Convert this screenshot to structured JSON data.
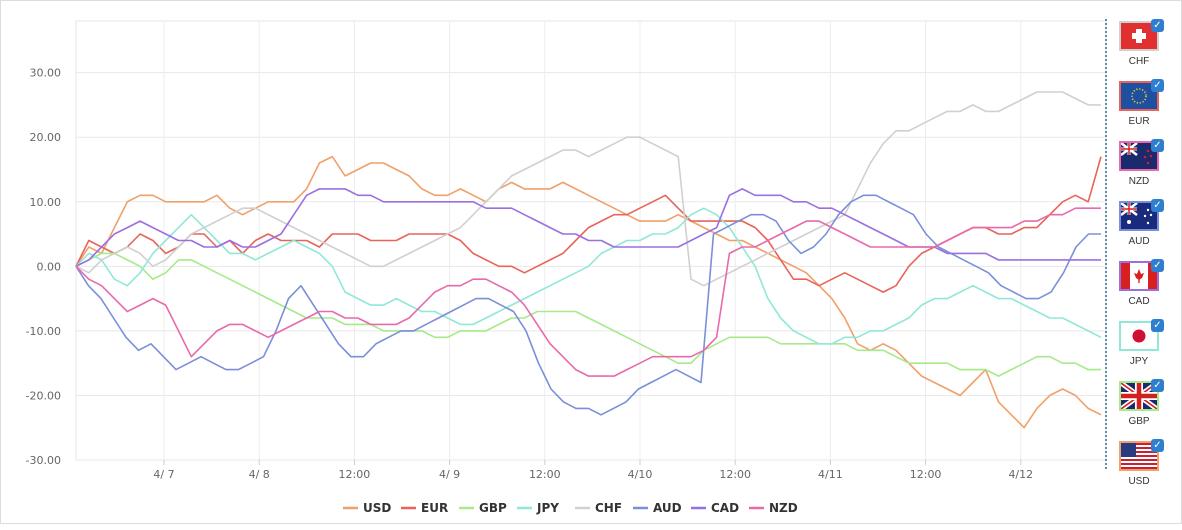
{
  "chart_data": {
    "type": "line",
    "y_ticks": [
      "30.00",
      "20.00",
      "10.00",
      "0.00",
      "-10.00",
      "-20.00",
      "-30.00"
    ],
    "x_ticks": [
      "4/ 7",
      "4/ 8",
      "12:00",
      "4/ 9",
      "12:00",
      "4/10",
      "12:00",
      "4/11",
      "12:00",
      "4/12"
    ],
    "ylim": [
      -30,
      38
    ],
    "grid": true,
    "legend_position": "bottom",
    "series": [
      {
        "name": "USD",
        "color": "#f0a06a",
        "values": [
          0,
          3,
          2,
          6,
          10,
          11,
          11,
          10,
          10,
          10,
          10,
          11,
          9,
          8,
          9,
          10,
          10,
          10,
          12,
          16,
          17,
          14,
          15,
          16,
          16,
          15,
          14,
          12,
          11,
          11,
          12,
          11,
          10,
          12,
          13,
          12,
          12,
          12,
          13,
          12,
          11,
          10,
          9,
          8,
          7,
          7,
          7,
          8,
          7,
          6,
          5,
          4,
          4,
          3,
          2,
          1,
          0,
          -1,
          -3,
          -5,
          -8,
          -12,
          -13,
          -12,
          -13,
          -15,
          -17,
          -18,
          -19,
          -20,
          -18,
          -16,
          -21,
          -23,
          -25,
          -22,
          -20,
          -19,
          -20,
          -22,
          -23
        ]
      },
      {
        "name": "EUR",
        "color": "#e8645a",
        "values": [
          0,
          4,
          3,
          2,
          3,
          5,
          4,
          2,
          3,
          5,
          5,
          3,
          4,
          2,
          4,
          5,
          4,
          4,
          4,
          3,
          5,
          5,
          5,
          4,
          4,
          4,
          5,
          5,
          5,
          5,
          4,
          2,
          1,
          0,
          0,
          -1,
          0,
          1,
          2,
          4,
          6,
          7,
          8,
          8,
          9,
          10,
          11,
          9,
          7,
          7,
          7,
          7,
          7,
          6,
          4,
          1,
          -2,
          -2,
          -3,
          -2,
          -1,
          -2,
          -3,
          -4,
          -3,
          0,
          2,
          3,
          4,
          5,
          6,
          6,
          5,
          5,
          6,
          6,
          8,
          10,
          11,
          10,
          17
        ]
      },
      {
        "name": "GBP",
        "color": "#a6ea8a",
        "values": [
          0,
          1,
          2,
          2,
          1,
          0,
          -2,
          -1,
          1,
          1,
          0,
          -1,
          -2,
          -3,
          -4,
          -5,
          -6,
          -7,
          -8,
          -8,
          -8,
          -9,
          -9,
          -9,
          -10,
          -10,
          -10,
          -10,
          -11,
          -11,
          -10,
          -10,
          -10,
          -9,
          -8,
          -8,
          -7,
          -7,
          -7,
          -7,
          -8,
          -9,
          -10,
          -11,
          -12,
          -13,
          -14,
          -15,
          -15,
          -13,
          -12,
          -11,
          -11,
          -11,
          -11,
          -12,
          -12,
          -12,
          -12,
          -12,
          -12,
          -13,
          -13,
          -13,
          -14,
          -15,
          -15,
          -15,
          -15,
          -16,
          -16,
          -16,
          -17,
          -16,
          -15,
          -14,
          -14,
          -15,
          -15,
          -16,
          -16
        ]
      },
      {
        "name": "JPY",
        "color": "#90e8d8",
        "values": [
          0,
          2,
          1,
          -2,
          -3,
          -1,
          2,
          4,
          6,
          8,
          6,
          4,
          2,
          2,
          1,
          2,
          3,
          4,
          3,
          2,
          0,
          -4,
          -5,
          -6,
          -6,
          -5,
          -6,
          -7,
          -7,
          -8,
          -9,
          -9,
          -8,
          -7,
          -6,
          -5,
          -4,
          -3,
          -2,
          -1,
          0,
          2,
          3,
          4,
          4,
          5,
          5,
          6,
          8,
          9,
          8,
          6,
          3,
          0,
          -5,
          -8,
          -10,
          -11,
          -12,
          -12,
          -11,
          -11,
          -10,
          -10,
          -9,
          -8,
          -6,
          -5,
          -5,
          -4,
          -3,
          -4,
          -5,
          -5,
          -6,
          -7,
          -8,
          -8,
          -9,
          -10,
          -11
        ]
      },
      {
        "name": "CHF",
        "color": "#d0d0d0",
        "values": [
          0,
          -1,
          1,
          2,
          3,
          2,
          0,
          1,
          3,
          5,
          6,
          7,
          8,
          9,
          9,
          8,
          7,
          6,
          5,
          4,
          3,
          2,
          1,
          0,
          0,
          1,
          2,
          3,
          4,
          5,
          6,
          8,
          10,
          12,
          14,
          15,
          16,
          17,
          18,
          18,
          17,
          18,
          19,
          20,
          20,
          19,
          18,
          17,
          -2,
          -3,
          -2,
          -1,
          0,
          1,
          2,
          3,
          4,
          5,
          6,
          7,
          8,
          12,
          16,
          19,
          21,
          21,
          22,
          23,
          24,
          24,
          25,
          24,
          24,
          25,
          26,
          27,
          27,
          27,
          26,
          25,
          25
        ]
      },
      {
        "name": "AUD",
        "color": "#7b8fd9",
        "values": [
          0,
          -3,
          -5,
          -8,
          -11,
          -13,
          -12,
          -14,
          -16,
          -15,
          -14,
          -15,
          -16,
          -16,
          -15,
          -14,
          -10,
          -5,
          -3,
          -6,
          -9,
          -12,
          -14,
          -14,
          -12,
          -11,
          -10,
          -10,
          -9,
          -8,
          -7,
          -6,
          -5,
          -5,
          -6,
          -7,
          -10,
          -15,
          -19,
          -21,
          -22,
          -22,
          -23,
          -22,
          -21,
          -19,
          -18,
          -17,
          -16,
          -17,
          -18,
          5,
          6,
          7,
          8,
          8,
          7,
          4,
          2,
          3,
          5,
          8,
          10,
          11,
          11,
          10,
          9,
          8,
          5,
          3,
          2,
          1,
          0,
          -1,
          -3,
          -4,
          -5,
          -5,
          -4,
          -1,
          3,
          5,
          5
        ]
      },
      {
        "name": "CAD",
        "color": "#9a6fe0",
        "values": [
          0,
          1,
          3,
          5,
          6,
          7,
          6,
          5,
          4,
          4,
          3,
          3,
          4,
          3,
          3,
          4,
          5,
          8,
          11,
          12,
          12,
          12,
          11,
          11,
          10,
          10,
          10,
          10,
          10,
          10,
          10,
          10,
          9,
          9,
          9,
          8,
          7,
          6,
          5,
          5,
          4,
          4,
          3,
          3,
          3,
          3,
          3,
          3,
          4,
          5,
          6,
          11,
          12,
          11,
          11,
          11,
          10,
          10,
          9,
          9,
          8,
          7,
          6,
          5,
          4,
          3,
          3,
          3,
          2,
          2,
          2,
          2,
          1,
          1,
          1,
          1,
          1,
          1,
          1,
          1,
          1
        ]
      },
      {
        "name": "NZD",
        "color": "#e86aac",
        "values": [
          0,
          -2,
          -3,
          -5,
          -7,
          -6,
          -5,
          -6,
          -10,
          -14,
          -12,
          -10,
          -9,
          -9,
          -10,
          -11,
          -10,
          -9,
          -8,
          -7,
          -7,
          -8,
          -8,
          -9,
          -9,
          -9,
          -8,
          -6,
          -4,
          -3,
          -3,
          -2,
          -2,
          -3,
          -4,
          -6,
          -9,
          -12,
          -14,
          -16,
          -17,
          -17,
          -17,
          -16,
          -15,
          -14,
          -14,
          -14,
          -14,
          -13,
          -11,
          2,
          3,
          3,
          4,
          5,
          6,
          7,
          7,
          6,
          5,
          4,
          3,
          3,
          3,
          3,
          3,
          3,
          4,
          5,
          6,
          6,
          6,
          6,
          7,
          7,
          8,
          8,
          9,
          9,
          9
        ]
      }
    ]
  },
  "side_panel": [
    {
      "code": "CHF",
      "color": "#d0d0d0",
      "icon": "swiss-flag"
    },
    {
      "code": "EUR",
      "color": "#e8645a",
      "icon": "eu-flag"
    },
    {
      "code": "NZD",
      "color": "#e86aac",
      "icon": "new-zealand-flag"
    },
    {
      "code": "AUD",
      "color": "#7b8fd9",
      "icon": "australia-flag"
    },
    {
      "code": "CAD",
      "color": "#9a6fe0",
      "icon": "canada-flag"
    },
    {
      "code": "JPY",
      "color": "#90e8d8",
      "icon": "japan-flag"
    },
    {
      "code": "GBP",
      "color": "#a6ea8a",
      "icon": "uk-flag"
    },
    {
      "code": "USD",
      "color": "#f0a06a",
      "icon": "usa-flag"
    }
  ],
  "check_glyph": "✓"
}
